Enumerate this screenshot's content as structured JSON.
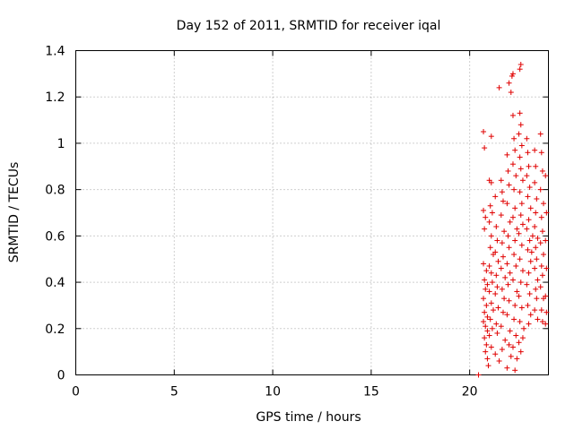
{
  "chart_data": {
    "type": "scatter",
    "title": "Day 152 of 2011, SRMTID for receiver iqal",
    "xlabel": "GPS time / hours",
    "ylabel": "SRMTID / TECUs",
    "xlim": [
      0,
      24
    ],
    "ylim": [
      0,
      1.4
    ],
    "xticks": [
      0,
      5,
      10,
      15,
      20
    ],
    "xtick_labels": [
      "0",
      "5",
      "10",
      "15",
      "20"
    ],
    "yticks": [
      0,
      0.2,
      0.4,
      0.6,
      0.8,
      1.0,
      1.2,
      1.4
    ],
    "ytick_labels": [
      "0",
      "0.2",
      "0.4",
      "0.6",
      "0.8",
      "1",
      "1.2",
      "1.4"
    ],
    "grid": true,
    "marker": "+",
    "color": "#e00000",
    "series": [
      {
        "name": "SRMTID",
        "points": [
          [
            20.45,
            0.0
          ],
          [
            20.7,
            1.05
          ],
          [
            20.75,
            0.98
          ],
          [
            20.7,
            0.71
          ],
          [
            20.8,
            0.68
          ],
          [
            20.75,
            0.63
          ],
          [
            20.7,
            0.48
          ],
          [
            20.85,
            0.45
          ],
          [
            20.75,
            0.41
          ],
          [
            20.9,
            0.39
          ],
          [
            20.8,
            0.37
          ],
          [
            20.7,
            0.33
          ],
          [
            20.85,
            0.3
          ],
          [
            20.75,
            0.27
          ],
          [
            20.9,
            0.25
          ],
          [
            20.7,
            0.23
          ],
          [
            20.8,
            0.21
          ],
          [
            20.9,
            0.19
          ],
          [
            20.75,
            0.16
          ],
          [
            20.85,
            0.13
          ],
          [
            20.8,
            0.1
          ],
          [
            20.9,
            0.07
          ],
          [
            21.0,
            0.84
          ],
          [
            21.1,
            0.83
          ],
          [
            21.05,
            0.73
          ],
          [
            21.15,
            0.7
          ],
          [
            21.0,
            0.66
          ],
          [
            21.1,
            0.6
          ],
          [
            21.05,
            0.55
          ],
          [
            21.2,
            0.52
          ],
          [
            21.0,
            0.47
          ],
          [
            21.1,
            0.44
          ],
          [
            21.15,
            0.4
          ],
          [
            21.0,
            0.36
          ],
          [
            21.1,
            0.31
          ],
          [
            21.2,
            0.28
          ],
          [
            21.05,
            0.24
          ],
          [
            21.15,
            0.2
          ],
          [
            21.0,
            0.17
          ],
          [
            21.1,
            0.12
          ],
          [
            20.95,
            0.04
          ],
          [
            21.1,
            1.03
          ],
          [
            21.3,
            0.77
          ],
          [
            21.35,
            0.64
          ],
          [
            21.4,
            0.58
          ],
          [
            21.3,
            0.53
          ],
          [
            21.45,
            0.49
          ],
          [
            21.35,
            0.43
          ],
          [
            21.4,
            0.38
          ],
          [
            21.3,
            0.35
          ],
          [
            21.45,
            0.29
          ],
          [
            21.35,
            0.22
          ],
          [
            21.4,
            0.18
          ],
          [
            21.3,
            0.09
          ],
          [
            21.5,
            0.06
          ],
          [
            21.6,
            0.84
          ],
          [
            21.65,
            0.79
          ],
          [
            21.7,
            0.75
          ],
          [
            21.6,
            0.69
          ],
          [
            21.75,
            0.62
          ],
          [
            21.65,
            0.57
          ],
          [
            21.7,
            0.51
          ],
          [
            21.6,
            0.46
          ],
          [
            21.8,
            0.42
          ],
          [
            21.65,
            0.37
          ],
          [
            21.75,
            0.33
          ],
          [
            21.7,
            0.27
          ],
          [
            21.6,
            0.21
          ],
          [
            21.8,
            0.15
          ],
          [
            21.65,
            0.11
          ],
          [
            21.5,
            1.24
          ],
          [
            21.9,
            0.95
          ],
          [
            21.95,
            0.88
          ],
          [
            22.0,
            0.82
          ],
          [
            21.9,
            0.74
          ],
          [
            22.05,
            0.66
          ],
          [
            21.95,
            0.6
          ],
          [
            22.0,
            0.55
          ],
          [
            21.9,
            0.48
          ],
          [
            22.05,
            0.44
          ],
          [
            21.95,
            0.39
          ],
          [
            22.0,
            0.32
          ],
          [
            21.9,
            0.26
          ],
          [
            22.05,
            0.19
          ],
          [
            22.0,
            0.13
          ],
          [
            22.1,
            0.08
          ],
          [
            21.9,
            0.03
          ],
          [
            22.0,
            1.26
          ],
          [
            22.15,
            1.29
          ],
          [
            22.2,
            1.3
          ],
          [
            22.1,
            1.22
          ],
          [
            22.2,
            1.12
          ],
          [
            22.25,
            1.02
          ],
          [
            22.3,
            0.97
          ],
          [
            22.2,
            0.91
          ],
          [
            22.35,
            0.86
          ],
          [
            22.25,
            0.8
          ],
          [
            22.3,
            0.72
          ],
          [
            22.2,
            0.68
          ],
          [
            22.4,
            0.63
          ],
          [
            22.3,
            0.58
          ],
          [
            22.25,
            0.52
          ],
          [
            22.35,
            0.47
          ],
          [
            22.2,
            0.41
          ],
          [
            22.4,
            0.36
          ],
          [
            22.3,
            0.3
          ],
          [
            22.25,
            0.24
          ],
          [
            22.35,
            0.17
          ],
          [
            22.2,
            0.12
          ],
          [
            22.4,
            0.07
          ],
          [
            22.3,
            0.02
          ],
          [
            22.55,
            1.32
          ],
          [
            22.6,
            1.34
          ],
          [
            22.55,
            1.13
          ],
          [
            22.6,
            1.08
          ],
          [
            22.5,
            1.04
          ],
          [
            22.65,
            0.99
          ],
          [
            22.55,
            0.94
          ],
          [
            22.6,
            0.89
          ],
          [
            22.7,
            0.84
          ],
          [
            22.55,
            0.79
          ],
          [
            22.65,
            0.74
          ],
          [
            22.6,
            0.69
          ],
          [
            22.7,
            0.65
          ],
          [
            22.5,
            0.61
          ],
          [
            22.65,
            0.56
          ],
          [
            22.55,
            0.5
          ],
          [
            22.7,
            0.45
          ],
          [
            22.6,
            0.4
          ],
          [
            22.5,
            0.34
          ],
          [
            22.65,
            0.29
          ],
          [
            22.55,
            0.23
          ],
          [
            22.7,
            0.16
          ],
          [
            22.6,
            0.1
          ],
          [
            22.5,
            0.14
          ],
          [
            22.75,
            0.2
          ],
          [
            22.9,
            1.02
          ],
          [
            22.95,
            0.96
          ],
          [
            23.0,
            0.9
          ],
          [
            22.9,
            0.86
          ],
          [
            23.05,
            0.81
          ],
          [
            22.95,
            0.77
          ],
          [
            23.1,
            0.72
          ],
          [
            23.0,
            0.67
          ],
          [
            22.9,
            0.63
          ],
          [
            23.05,
            0.58
          ],
          [
            22.95,
            0.54
          ],
          [
            23.1,
            0.49
          ],
          [
            23.0,
            0.44
          ],
          [
            22.9,
            0.39
          ],
          [
            23.05,
            0.35
          ],
          [
            22.95,
            0.3
          ],
          [
            23.1,
            0.26
          ],
          [
            23.0,
            0.22
          ],
          [
            23.15,
            0.53
          ],
          [
            23.2,
            0.6
          ],
          [
            23.3,
            0.97
          ],
          [
            23.35,
            0.9
          ],
          [
            23.3,
            0.83
          ],
          [
            23.4,
            0.76
          ],
          [
            23.35,
            0.7
          ],
          [
            23.3,
            0.64
          ],
          [
            23.45,
            0.59
          ],
          [
            23.35,
            0.55
          ],
          [
            23.4,
            0.5
          ],
          [
            23.3,
            0.46
          ],
          [
            23.45,
            0.41
          ],
          [
            23.35,
            0.37
          ],
          [
            23.4,
            0.33
          ],
          [
            23.3,
            0.28
          ],
          [
            23.45,
            0.24
          ],
          [
            23.6,
            1.04
          ],
          [
            23.65,
            0.96
          ],
          [
            23.7,
            0.88
          ],
          [
            23.6,
            0.8
          ],
          [
            23.75,
            0.74
          ],
          [
            23.65,
            0.68
          ],
          [
            23.7,
            0.62
          ],
          [
            23.6,
            0.57
          ],
          [
            23.75,
            0.52
          ],
          [
            23.65,
            0.47
          ],
          [
            23.7,
            0.43
          ],
          [
            23.6,
            0.38
          ],
          [
            23.75,
            0.33
          ],
          [
            23.65,
            0.28
          ],
          [
            23.7,
            0.23
          ],
          [
            23.85,
            0.86
          ],
          [
            23.9,
            0.7
          ],
          [
            23.85,
            0.58
          ],
          [
            23.9,
            0.46
          ],
          [
            23.85,
            0.34
          ],
          [
            23.9,
            0.27
          ],
          [
            23.85,
            0.22
          ]
        ]
      }
    ]
  }
}
